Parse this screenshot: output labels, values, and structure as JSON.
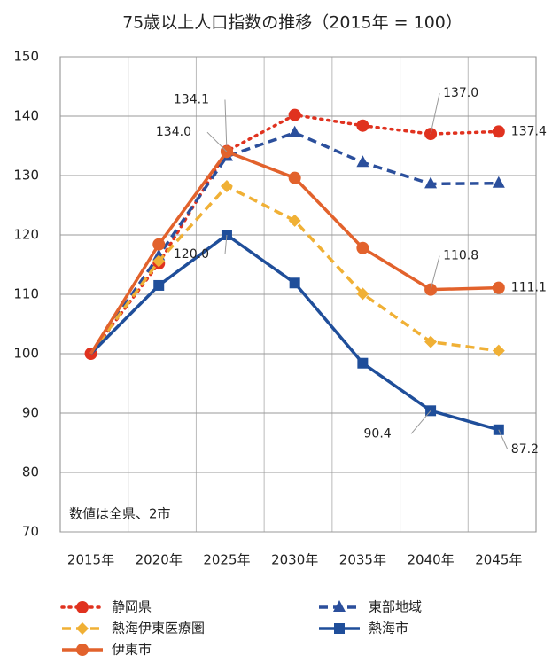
{
  "chart_data": {
    "type": "line",
    "title": "75歳以上人口指数の推移（2015年 = 100）",
    "annotation": "数値は全県、2市",
    "categories": [
      "2015年",
      "2020年",
      "2025年",
      "2030年",
      "2035年",
      "2040年",
      "2045年"
    ],
    "ylim": [
      70,
      150
    ],
    "yticks": [
      70,
      80,
      90,
      100,
      110,
      120,
      130,
      140,
      150
    ],
    "grid": true,
    "legend": "bottom",
    "series": [
      {
        "name": "静岡県",
        "color": "#e0321f",
        "dash": "dotted",
        "marker": "circle",
        "values": [
          100,
          115.2,
          134.1,
          140.2,
          138.4,
          137.0,
          137.4
        ],
        "value_labels": [
          null,
          null,
          "134.1",
          null,
          null,
          "137.0",
          "137.4"
        ]
      },
      {
        "name": "東部地域",
        "color": "#2b4f9c",
        "dash": "dashed",
        "marker": "triangle",
        "values": [
          100,
          116.5,
          133.2,
          137.2,
          132.2,
          128.6,
          128.7
        ],
        "value_labels": [
          null,
          null,
          null,
          null,
          null,
          null,
          null
        ]
      },
      {
        "name": "熱海伊東医療圏",
        "color": "#f0b035",
        "dash": "dashed",
        "marker": "diamond",
        "values": [
          100,
          115.6,
          128.2,
          122.4,
          110.1,
          102.0,
          100.5
        ],
        "value_labels": [
          null,
          null,
          null,
          null,
          null,
          null,
          null
        ]
      },
      {
        "name": "熱海市",
        "color": "#1f4e9a",
        "dash": "solid",
        "marker": "square",
        "values": [
          100,
          111.5,
          120.0,
          111.9,
          98.4,
          90.4,
          87.2
        ],
        "value_labels": [
          null,
          null,
          "120.0",
          null,
          null,
          "90.4",
          "87.2"
        ]
      },
      {
        "name": "伊東市",
        "color": "#e2622c",
        "dash": "solid",
        "marker": "circle",
        "values": [
          100,
          118.4,
          134.0,
          129.6,
          117.8,
          110.8,
          111.1
        ],
        "value_labels": [
          null,
          null,
          "134.0",
          null,
          null,
          "110.8",
          "111.1"
        ]
      }
    ]
  }
}
